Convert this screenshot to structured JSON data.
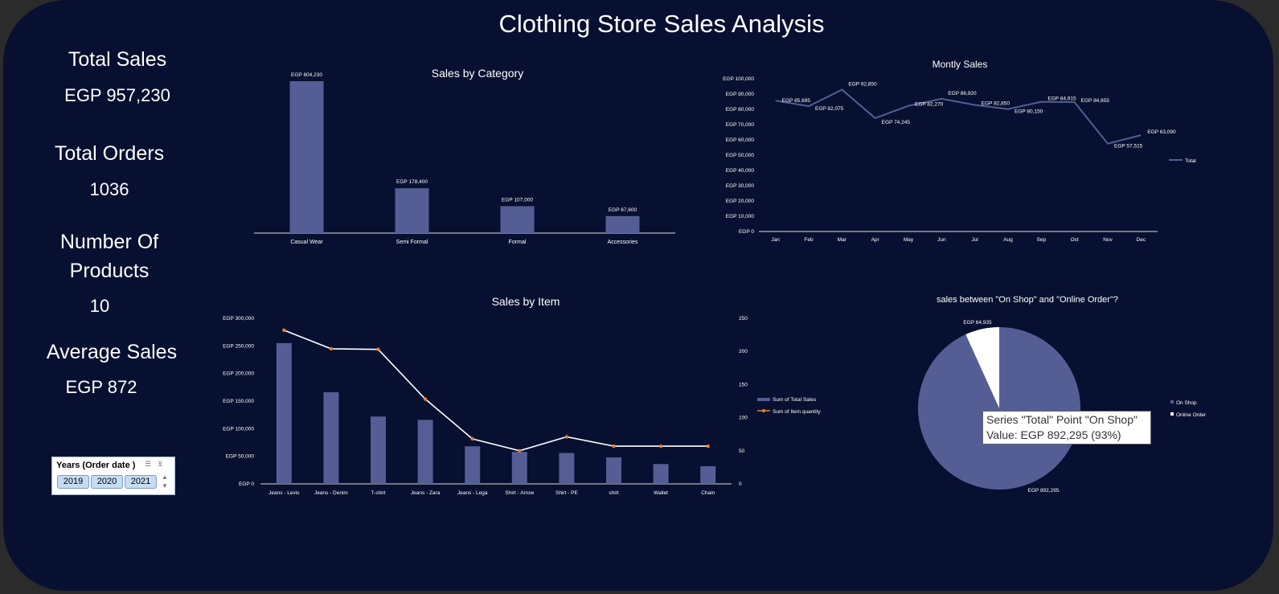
{
  "title": "Clothing Store Sales Analysis",
  "kpis": [
    {
      "label": "Total Sales",
      "value": "EGP 957,230"
    },
    {
      "label": "Total Orders",
      "value": "1036"
    },
    {
      "label_line1": "Number Of",
      "label_line2": "Products",
      "value": "10"
    },
    {
      "label": "Average Sales",
      "value": "EGP 872"
    }
  ],
  "slicer": {
    "header": "Years (Order date )",
    "options": [
      "2019",
      "2020",
      "2021"
    ]
  },
  "tooltip": {
    "line1": "Series \"Total\" Point \"On Shop\"",
    "line2": "Value: EGP 892,295 (93%)"
  },
  "colors": {
    "bar": "#545e95",
    "background": "#071030",
    "line": "#ffffff",
    "marker": "#ed7d31"
  },
  "chart_data": [
    {
      "type": "bar",
      "title": "Sales by Category",
      "categories": [
        "Casual Wear",
        "Semi Formal",
        "Formal",
        "Accessories"
      ],
      "values": [
        604230,
        178400,
        107000,
        67600
      ],
      "labels": [
        "EGP 604,230",
        "EGP 178,400",
        "EGP 107,000",
        "EGP 67,600"
      ]
    },
    {
      "type": "line",
      "title": "Montly Sales",
      "categories": [
        "Jan",
        "Feb",
        "Mar",
        "Apr",
        "May",
        "Jun",
        "Jul",
        "Aug",
        "Sep",
        "Oct",
        "Nov",
        "Dec"
      ],
      "series": [
        {
          "name": "Total",
          "values": [
            85695,
            82075,
            92850,
            74245,
            82270,
            86920,
            82850,
            80150,
            84915,
            84655,
            57515,
            63090
          ]
        }
      ],
      "labels": [
        "EGP 85,695",
        "EGP 82,075",
        "EGP 92,850",
        "EGP 74,245",
        "EGP 82,270",
        "EGP 86,920",
        "EGP 82,850",
        "EGP 80,150",
        "EGP 84,915",
        "EGP 84,655",
        "EGP 57,515",
        "EGP 63,090"
      ],
      "ylim": [
        0,
        100000
      ],
      "yticks": [
        "EGP 0",
        "EGP 10,000",
        "EGP 20,000",
        "EGP 30,000",
        "EGP 40,000",
        "EGP 50,000",
        "EGP 60,000",
        "EGP 70,000",
        "EGP 80,000",
        "EGP 90,000",
        "EGP 100,000"
      ],
      "legend": "right"
    },
    {
      "type": "bar",
      "title": "Sales by Item",
      "categories": [
        "Jeans - Levis",
        "Jeans - Denim",
        "T-shirt",
        "Jeans - Zara",
        "Jeans - Lega",
        "Shirt - Arrow",
        "Shirt - PE",
        "shirt",
        "Wallet",
        "Chain"
      ],
      "series": [
        {
          "name": "Sum of Total Sales",
          "values": [
            255000,
            166000,
            122000,
            116000,
            68000,
            58000,
            56000,
            48000,
            36000,
            32000
          ],
          "axis": "left"
        },
        {
          "name": "Sum of Item quantity",
          "values": [
            232,
            204,
            203,
            128,
            68,
            50,
            71,
            57,
            57,
            57
          ],
          "axis": "right",
          "type": "line"
        }
      ],
      "ylim": [
        0,
        300000
      ],
      "yticks": [
        "EGP 0",
        "EGP 50,000",
        "EGP 100,000",
        "EGP 150,000",
        "EGP 200,000",
        "EGP 250,000",
        "EGP 300,000"
      ],
      "y2lim": [
        0,
        250
      ],
      "y2ticks": [
        "0",
        "50",
        "100",
        "150",
        "200",
        "250"
      ],
      "legend": "right"
    },
    {
      "type": "pie",
      "title": "sales between \"On Shop\" and \"Online Order\"?",
      "categories": [
        "On Shop",
        "Online Order"
      ],
      "values": [
        892295,
        64935
      ],
      "labels": [
        "EGP 892,295",
        "EGP 64,935"
      ],
      "legend": "right"
    }
  ]
}
